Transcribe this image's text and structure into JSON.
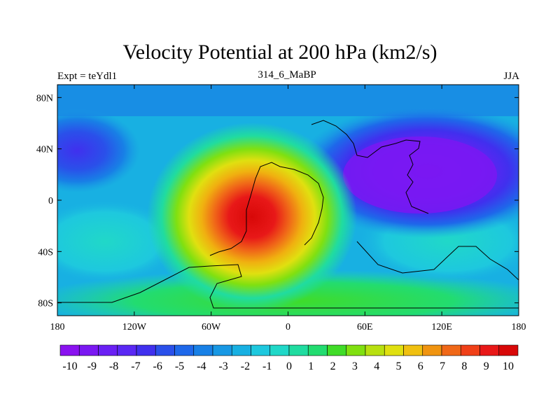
{
  "chart_data": {
    "type": "contour_map",
    "title": "Velocity Potential at 200 hPa (km2/s)",
    "subtitle_left": "Expt = teYdl1",
    "subtitle_center": "314_6_MaBP",
    "subtitle_right": "JJA",
    "x_ticks": [
      "180",
      "120W",
      "60W",
      "0",
      "60E",
      "120E",
      "180"
    ],
    "x_tick_values": [
      -180,
      -120,
      -60,
      0,
      60,
      120,
      180
    ],
    "y_ticks": [
      "80N",
      "40N",
      "0",
      "40S",
      "80S"
    ],
    "y_tick_values": [
      80,
      40,
      0,
      -40,
      -80
    ],
    "lon_range": [
      -180,
      180
    ],
    "lat_range": [
      -90,
      90
    ],
    "colorbar_labels": [
      "-10",
      "-9",
      "-8",
      "-7",
      "-6",
      "-5",
      "-4",
      "-3",
      "-2",
      "-1",
      "0",
      "1",
      "2",
      "3",
      "4",
      "5",
      "6",
      "7",
      "8",
      "9",
      "10"
    ],
    "colorbar_levels": [
      -10,
      -9,
      -8,
      -7,
      -6,
      -5,
      -4,
      -3,
      -2,
      -1,
      0,
      1,
      2,
      3,
      4,
      5,
      6,
      7,
      8,
      9,
      10
    ],
    "colorbar_colors": [
      "#8a12f0",
      "#7a18f2",
      "#6a20f4",
      "#5a28f4",
      "#4030ee",
      "#2a50ea",
      "#1e68ea",
      "#1880e6",
      "#1898e4",
      "#18b0e2",
      "#1ec8de",
      "#20d8c8",
      "#20dca0",
      "#22dc70",
      "#40dc28",
      "#80e010",
      "#b8e010",
      "#e0e010",
      "#f0c010",
      "#f09410",
      "#f06818",
      "#f04018",
      "#e81818",
      "#d80808"
    ],
    "field": {
      "background_value": 0,
      "features": [
        {
          "name": "positive-maximum-west-africa",
          "lon": -30,
          "lat": -20,
          "value": 10
        },
        {
          "name": "negative-minimum-asia",
          "lon": 110,
          "lat": 15,
          "value": -10
        },
        {
          "name": "negative-center-north-pacific",
          "lon": -170,
          "lat": 35,
          "value": -6
        }
      ]
    }
  }
}
